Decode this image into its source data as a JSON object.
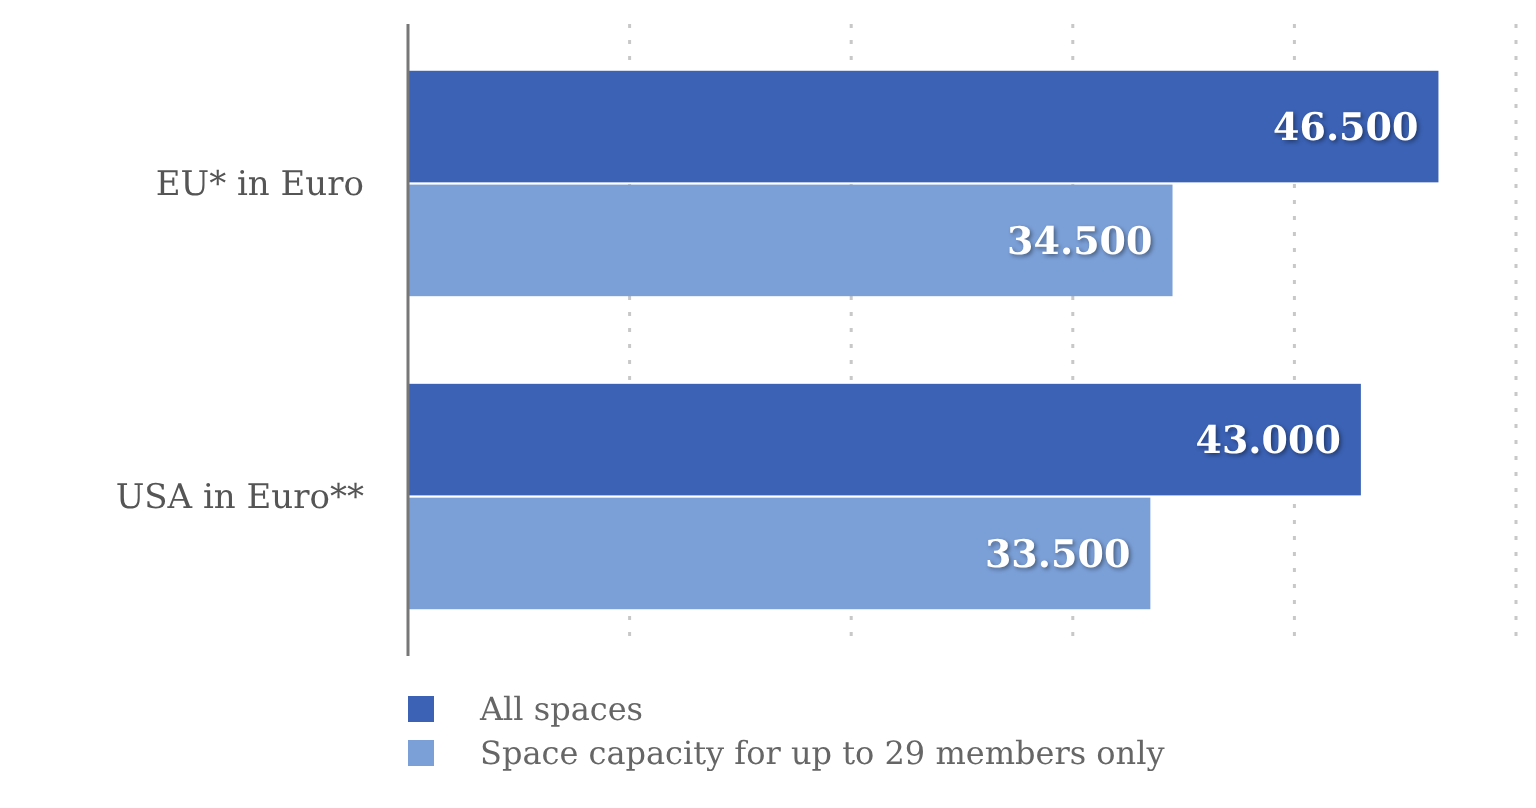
{
  "chart_data": {
    "type": "bar",
    "orientation": "horizontal",
    "categories": [
      "EU* in Euro",
      "USA in Euro**"
    ],
    "series": [
      {
        "name": "All spaces",
        "color": "#3b62b5",
        "values": [
          46500,
          43000
        ],
        "value_labels": [
          "46.500",
          "43.000"
        ]
      },
      {
        "name": "Space capacity for up to 29 members only",
        "color": "#7ba0d8",
        "values": [
          34500,
          33500
        ],
        "value_labels": [
          "34.500",
          "33.500"
        ]
      }
    ],
    "xlim": [
      0,
      50000
    ],
    "xticks": [
      {
        "value": 0,
        "label": null
      },
      {
        "value": 10000,
        "label": null
      },
      {
        "value": 20000,
        "label": null
      },
      {
        "value": 30000,
        "label": null
      },
      {
        "value": 40000,
        "label": null
      },
      {
        "value": 50000,
        "label": null
      }
    ],
    "grid": "x",
    "tick_labels": "y",
    "legend": "bottom left"
  }
}
